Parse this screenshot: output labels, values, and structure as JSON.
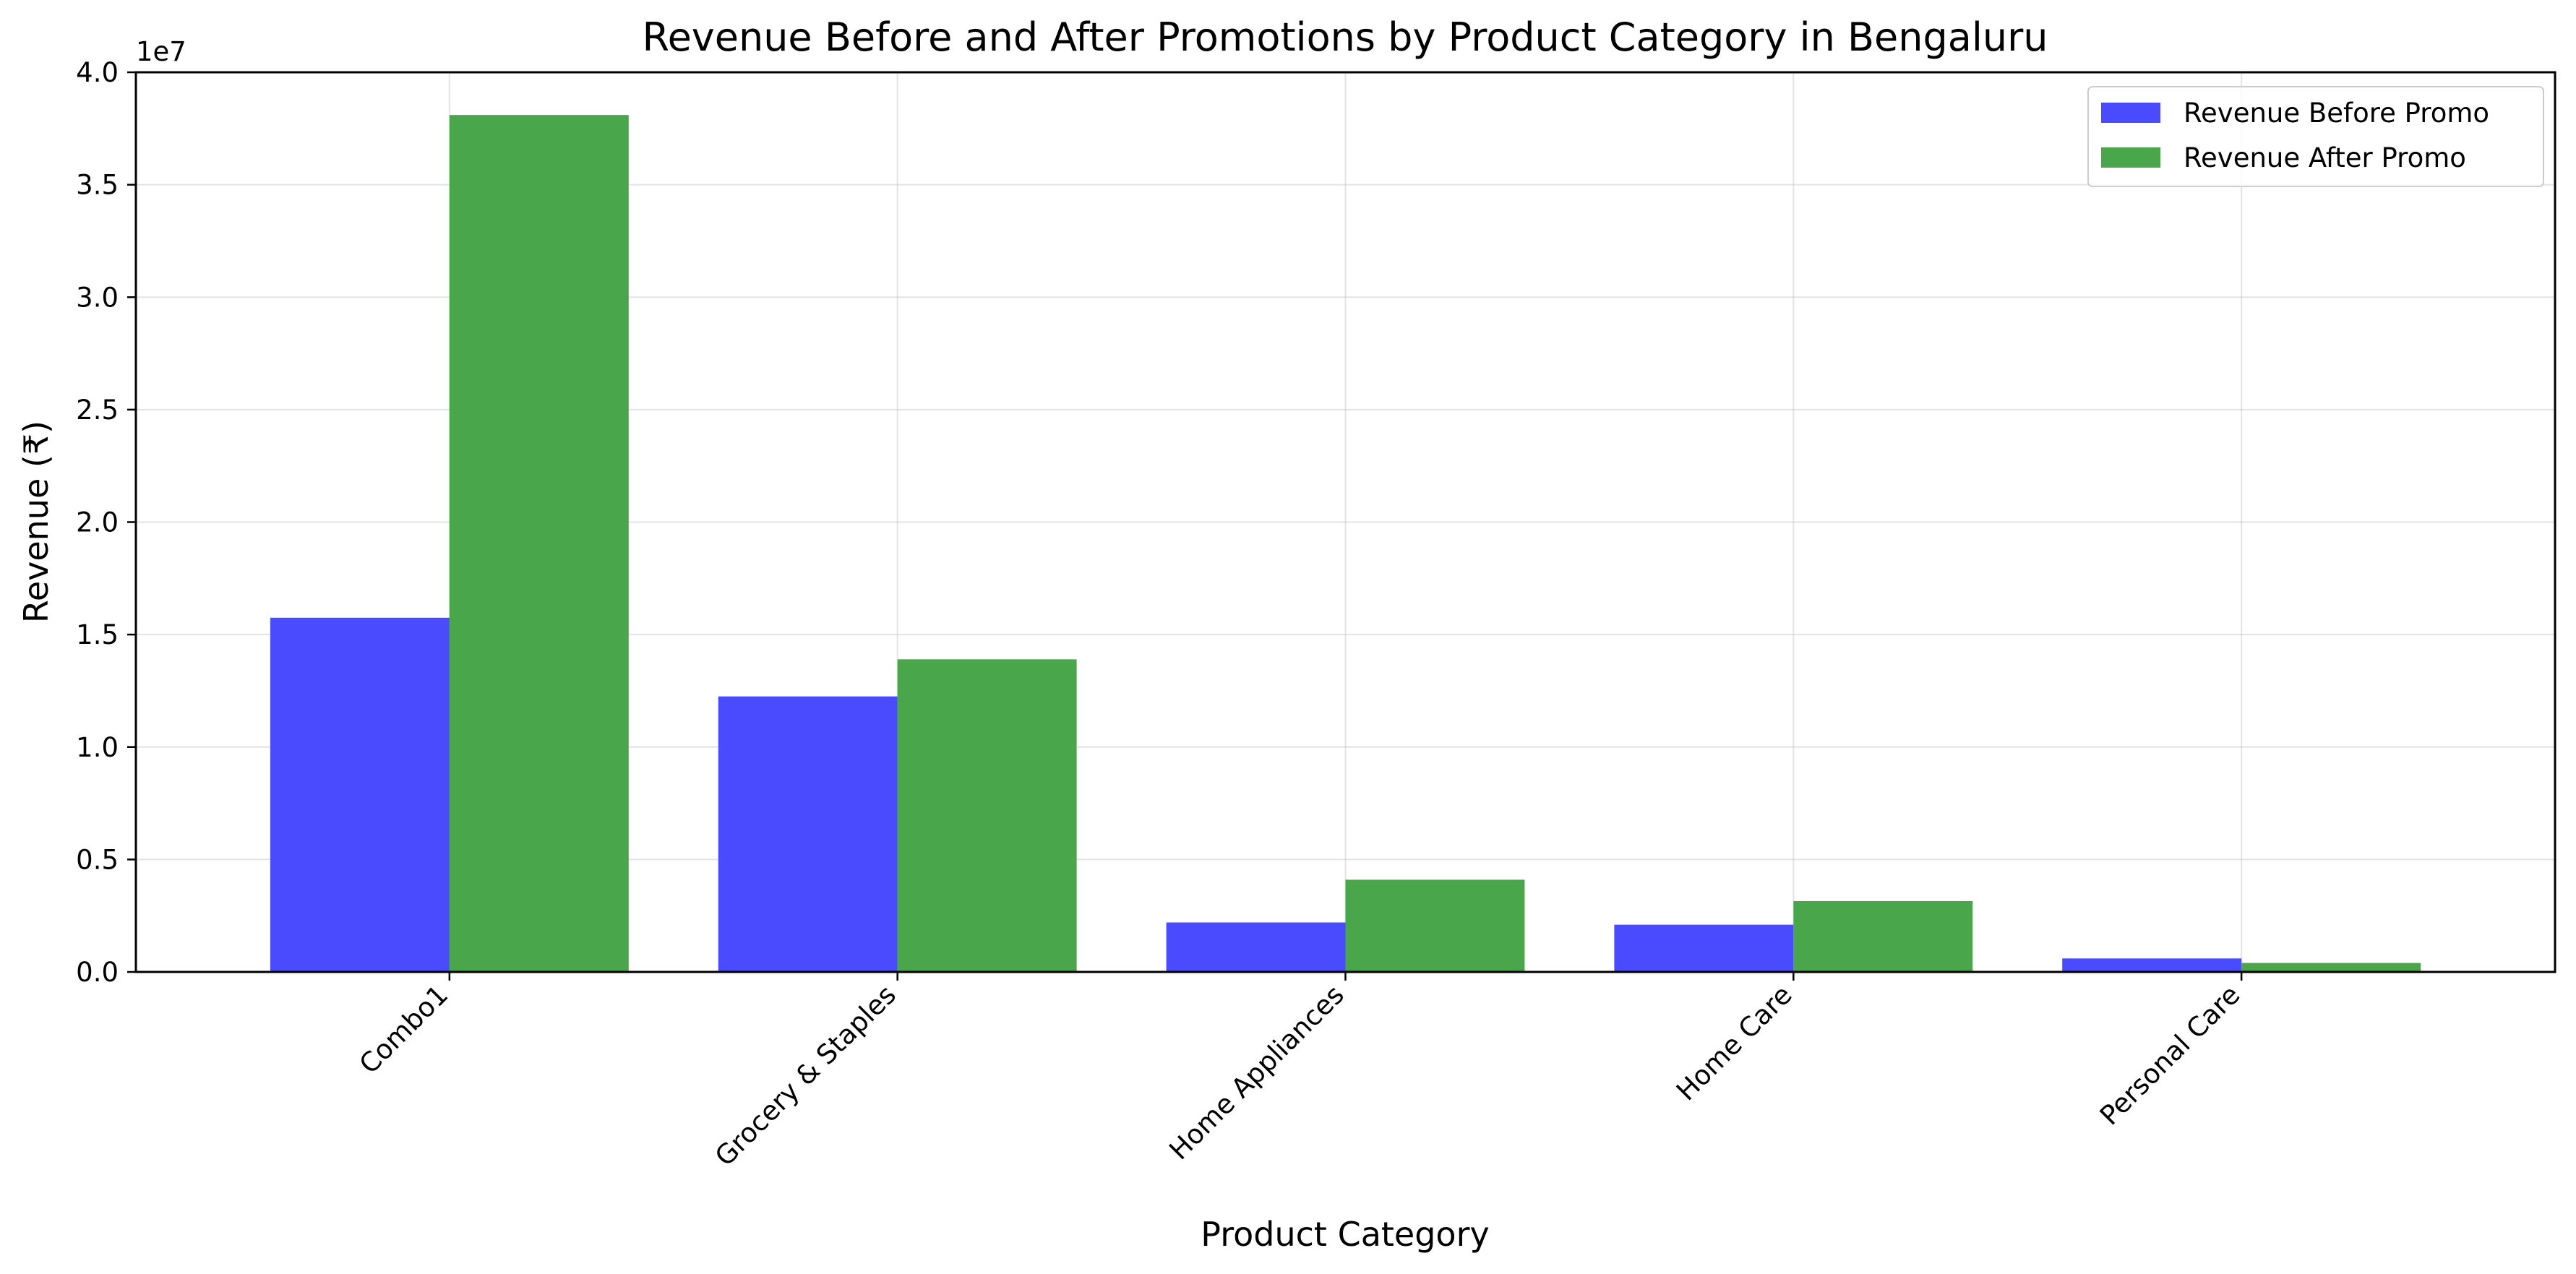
{
  "chart_data": {
    "type": "bar",
    "title": "Revenue Before and After Promotions by Product Category in Bengaluru",
    "xlabel": "Product Category",
    "ylabel": "Revenue (₹)",
    "y_offset_label": "1e7",
    "y_tick_values": [
      0,
      5000000,
      10000000,
      15000000,
      20000000,
      25000000,
      30000000,
      35000000,
      40000000
    ],
    "y_tick_labels": [
      "0.0",
      "0.5",
      "1.0",
      "1.5",
      "2.0",
      "2.5",
      "3.0",
      "3.5",
      "4.0"
    ],
    "ylim": [
      0,
      40000000
    ],
    "grid": true,
    "legend_position": "top-right",
    "categories": [
      "Combo1",
      "Grocery & Staples",
      "Home Appliances",
      "Home Care",
      "Personal Care"
    ],
    "series": [
      {
        "name": "Revenue Before Promo",
        "color": "#4a4aff",
        "values": [
          15750000,
          12250000,
          2200000,
          2100000,
          600000
        ]
      },
      {
        "name": "Revenue After Promo",
        "color": "#4aa64a",
        "values": [
          38100000,
          13900000,
          4100000,
          3150000,
          400000
        ]
      }
    ]
  }
}
